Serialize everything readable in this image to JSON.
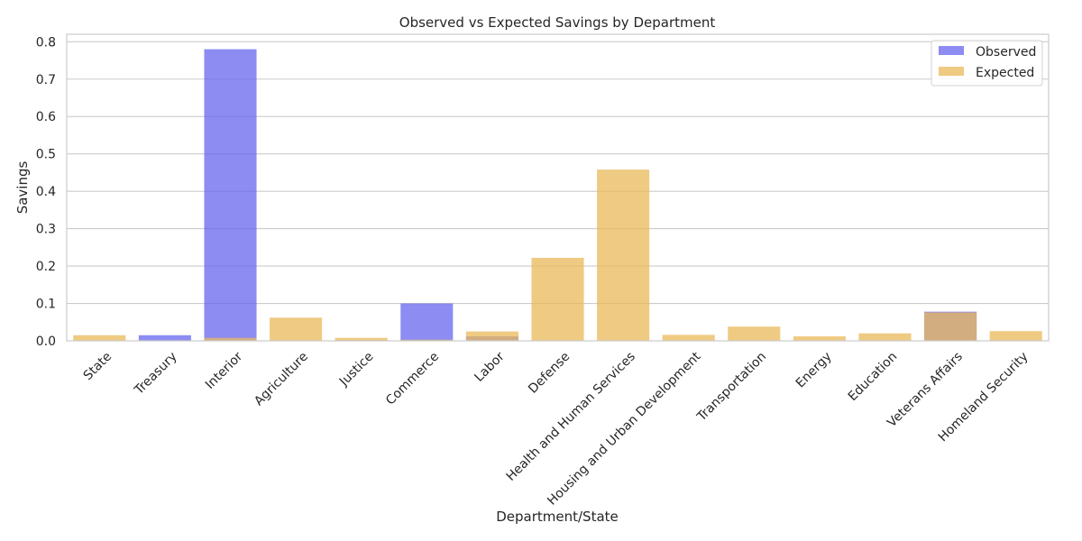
{
  "chart_data": {
    "type": "bar",
    "title": "Observed vs Expected Savings by Department",
    "xlabel": "Department/State",
    "ylabel": "Savings",
    "ylim": [
      0,
      0.82
    ],
    "yticks": [
      "0.0",
      "0.1",
      "0.2",
      "0.3",
      "0.4",
      "0.5",
      "0.6",
      "0.7",
      "0.8"
    ],
    "grid": true,
    "legend_position": "top-right",
    "categories": [
      "State",
      "Treasury",
      "Interior",
      "Agriculture",
      "Justice",
      "Commerce",
      "Labor",
      "Defense",
      "Health and Human Services",
      "Housing and Urban Development",
      "Transportation",
      "Energy",
      "Education",
      "Veterans Affairs",
      "Homeland Security"
    ],
    "series": [
      {
        "name": "Observed",
        "color": "#6666ee",
        "opacity": 0.75,
        "values": [
          0.0,
          0.015,
          0.78,
          0.0,
          0.002,
          0.1,
          0.012,
          0.0,
          0.0,
          0.0,
          0.0,
          0.0,
          0.0,
          0.078,
          0.0
        ]
      },
      {
        "name": "Expected",
        "color": "#e9b858",
        "opacity": 0.75,
        "values": [
          0.015,
          0.0,
          0.008,
          0.062,
          0.008,
          0.003,
          0.025,
          0.222,
          0.458,
          0.016,
          0.038,
          0.012,
          0.02,
          0.076,
          0.026
        ]
      }
    ]
  }
}
